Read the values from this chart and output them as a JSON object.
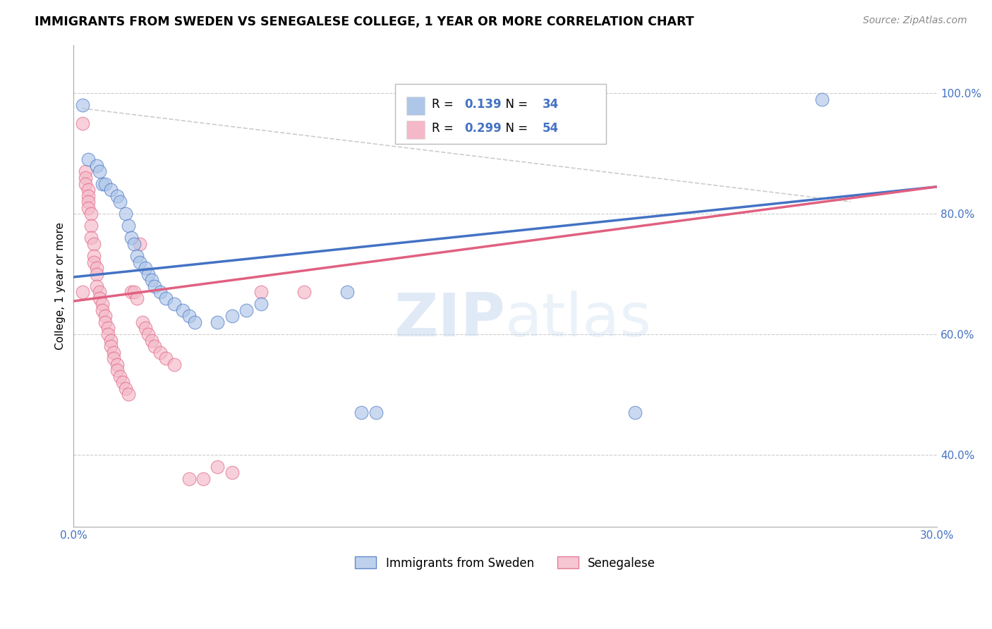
{
  "title": "IMMIGRANTS FROM SWEDEN VS SENEGALESE COLLEGE, 1 YEAR OR MORE CORRELATION CHART",
  "source": "Source: ZipAtlas.com",
  "ylabel": "College, 1 year or more",
  "xmin": 0.0,
  "xmax": 0.3,
  "ymin": 0.28,
  "ymax": 1.08,
  "xtick_positions": [
    0.0,
    0.3
  ],
  "xtick_labels": [
    "0.0%",
    "30.0%"
  ],
  "yticks": [
    0.4,
    0.6,
    0.8,
    1.0
  ],
  "ytick_labels": [
    "40.0%",
    "60.0%",
    "80.0%",
    "100.0%"
  ],
  "legend1_r": "0.139",
  "legend1_n": "34",
  "legend2_r": "0.299",
  "legend2_n": "54",
  "sweden_fill_color": "#aec6e8",
  "senegal_fill_color": "#f4b8c8",
  "sweden_edge_color": "#4472c4",
  "senegal_edge_color": "#e06080",
  "sweden_line_color": "#4472c4",
  "senegal_line_color": "#e06080",
  "grid_color": "#cccccc",
  "ref_line_color": "#cccccc",
  "watermark_color": "#dce8f5",
  "sweden_points": [
    [
      0.003,
      0.98
    ],
    [
      0.005,
      0.89
    ],
    [
      0.008,
      0.88
    ],
    [
      0.009,
      0.87
    ],
    [
      0.01,
      0.85
    ],
    [
      0.011,
      0.85
    ],
    [
      0.013,
      0.84
    ],
    [
      0.015,
      0.83
    ],
    [
      0.016,
      0.82
    ],
    [
      0.018,
      0.8
    ],
    [
      0.019,
      0.78
    ],
    [
      0.02,
      0.76
    ],
    [
      0.021,
      0.75
    ],
    [
      0.022,
      0.73
    ],
    [
      0.023,
      0.72
    ],
    [
      0.025,
      0.71
    ],
    [
      0.026,
      0.7
    ],
    [
      0.027,
      0.69
    ],
    [
      0.028,
      0.68
    ],
    [
      0.03,
      0.67
    ],
    [
      0.032,
      0.66
    ],
    [
      0.035,
      0.65
    ],
    [
      0.038,
      0.64
    ],
    [
      0.04,
      0.63
    ],
    [
      0.042,
      0.62
    ],
    [
      0.05,
      0.62
    ],
    [
      0.055,
      0.63
    ],
    [
      0.06,
      0.64
    ],
    [
      0.065,
      0.65
    ],
    [
      0.095,
      0.67
    ],
    [
      0.1,
      0.47
    ],
    [
      0.105,
      0.47
    ],
    [
      0.195,
      0.47
    ],
    [
      0.26,
      0.99
    ]
  ],
  "senegal_points": [
    [
      0.003,
      0.95
    ],
    [
      0.004,
      0.87
    ],
    [
      0.004,
      0.86
    ],
    [
      0.004,
      0.85
    ],
    [
      0.005,
      0.84
    ],
    [
      0.005,
      0.83
    ],
    [
      0.005,
      0.82
    ],
    [
      0.005,
      0.81
    ],
    [
      0.006,
      0.8
    ],
    [
      0.006,
      0.78
    ],
    [
      0.006,
      0.76
    ],
    [
      0.007,
      0.75
    ],
    [
      0.007,
      0.73
    ],
    [
      0.007,
      0.72
    ],
    [
      0.008,
      0.71
    ],
    [
      0.008,
      0.7
    ],
    [
      0.008,
      0.68
    ],
    [
      0.009,
      0.67
    ],
    [
      0.009,
      0.66
    ],
    [
      0.01,
      0.65
    ],
    [
      0.01,
      0.64
    ],
    [
      0.011,
      0.63
    ],
    [
      0.011,
      0.62
    ],
    [
      0.012,
      0.61
    ],
    [
      0.012,
      0.6
    ],
    [
      0.013,
      0.59
    ],
    [
      0.013,
      0.58
    ],
    [
      0.014,
      0.57
    ],
    [
      0.014,
      0.56
    ],
    [
      0.015,
      0.55
    ],
    [
      0.015,
      0.54
    ],
    [
      0.016,
      0.53
    ],
    [
      0.017,
      0.52
    ],
    [
      0.018,
      0.51
    ],
    [
      0.019,
      0.5
    ],
    [
      0.02,
      0.67
    ],
    [
      0.021,
      0.67
    ],
    [
      0.022,
      0.66
    ],
    [
      0.023,
      0.75
    ],
    [
      0.024,
      0.62
    ],
    [
      0.025,
      0.61
    ],
    [
      0.026,
      0.6
    ],
    [
      0.027,
      0.59
    ],
    [
      0.028,
      0.58
    ],
    [
      0.03,
      0.57
    ],
    [
      0.032,
      0.56
    ],
    [
      0.035,
      0.55
    ],
    [
      0.04,
      0.36
    ],
    [
      0.045,
      0.36
    ],
    [
      0.05,
      0.38
    ],
    [
      0.055,
      0.37
    ],
    [
      0.065,
      0.67
    ],
    [
      0.08,
      0.67
    ],
    [
      0.003,
      0.67
    ]
  ]
}
